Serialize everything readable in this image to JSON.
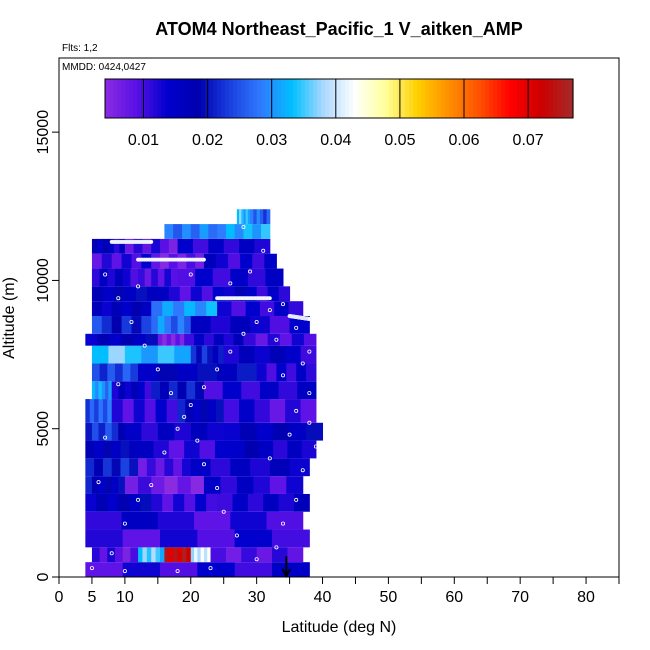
{
  "chart_data": {
    "type": "heatmap",
    "title": "ATOM4 Northeast_Pacific_1 V_aitken_AMP",
    "flights_note": "Flts: 1,2",
    "dates_note": "MMDD: 0424,0427",
    "xlabel": "Latitude (deg N)",
    "ylabel": "Altitude (m)",
    "xlim": [
      0,
      85
    ],
    "ylim": [
      0,
      17500
    ],
    "x_ticks": [
      0,
      5,
      10,
      20,
      30,
      40,
      50,
      60,
      70,
      80
    ],
    "y_ticks": [
      0,
      5000,
      10000,
      15000
    ],
    "grid": false,
    "colorbar": {
      "placement": "top",
      "range": [
        0.004,
        0.077
      ],
      "ticks": [
        0.01,
        0.02,
        0.03,
        0.04,
        0.05,
        0.06,
        0.07
      ],
      "tick_labels": [
        "0.01",
        "0.02",
        "0.03",
        "0.04",
        "0.05",
        "0.06",
        "0.07"
      ],
      "colors": [
        "#8a2be2",
        "#5a10e6",
        "#0000cd",
        "#0000b0",
        "#1a3fe0",
        "#2f7bff",
        "#00bfff",
        "#aad8ff",
        "#ffffff",
        "#ffff99",
        "#ffd000",
        "#ff9000",
        "#ff5000",
        "#ff0000",
        "#cc0000",
        "#a52a2a"
      ]
    },
    "arrow_marker": {
      "lat": 34.5,
      "alt_top": 700,
      "alt_bottom": 0
    },
    "bands": [
      {
        "alt": [
          0,
          500
        ],
        "lat": [
          4,
          38
        ],
        "segments": [
          [
            4,
            38,
            0.012
          ]
        ]
      },
      {
        "alt": [
          500,
          1000
        ],
        "lat": [
          5,
          37
        ],
        "segments": [
          [
            5,
            12,
            0.009
          ],
          [
            12,
            16,
            0.035
          ],
          [
            16,
            20,
            0.072
          ],
          [
            20,
            23,
            0.04
          ],
          [
            23,
            37,
            0.009
          ]
        ]
      },
      {
        "alt": [
          1000,
          1600
        ],
        "lat": [
          4,
          38
        ],
        "segments": [
          [
            4,
            38,
            0.011
          ]
        ]
      },
      {
        "alt": [
          1600,
          2200
        ],
        "lat": [
          4,
          37
        ],
        "segments": [
          [
            4,
            37,
            0.012
          ]
        ]
      },
      {
        "alt": [
          2200,
          2800
        ],
        "lat": [
          4,
          38
        ],
        "segments": [
          [
            4,
            14,
            0.016
          ],
          [
            14,
            24,
            0.011
          ],
          [
            24,
            38,
            0.014
          ]
        ]
      },
      {
        "alt": [
          2800,
          3400
        ],
        "lat": [
          4,
          37
        ],
        "segments": [
          [
            4,
            10,
            0.018
          ],
          [
            10,
            22,
            0.007
          ],
          [
            22,
            37,
            0.012
          ]
        ]
      },
      {
        "alt": [
          3400,
          4000
        ],
        "lat": [
          4,
          38
        ],
        "segments": [
          [
            4,
            12,
            0.02
          ],
          [
            12,
            20,
            0.009
          ],
          [
            20,
            38,
            0.014
          ]
        ]
      },
      {
        "alt": [
          4000,
          4600
        ],
        "lat": [
          4,
          39
        ],
        "segments": [
          [
            4,
            12,
            0.018
          ],
          [
            12,
            26,
            0.012
          ],
          [
            26,
            39,
            0.015
          ]
        ]
      },
      {
        "alt": [
          4600,
          5200
        ],
        "lat": [
          4,
          40
        ],
        "segments": [
          [
            4,
            10,
            0.022
          ],
          [
            10,
            25,
            0.013
          ],
          [
            25,
            40,
            0.016
          ]
        ]
      },
      {
        "alt": [
          5200,
          6000
        ],
        "lat": [
          4,
          39
        ],
        "segments": [
          [
            4,
            8,
            0.026
          ],
          [
            8,
            18,
            0.012
          ],
          [
            18,
            25,
            0.018
          ],
          [
            25,
            39,
            0.011
          ]
        ]
      },
      {
        "alt": [
          6000,
          6600
        ],
        "lat": [
          5,
          39
        ],
        "segments": [
          [
            5,
            8,
            0.03
          ],
          [
            8,
            14,
            0.014
          ],
          [
            14,
            22,
            0.019
          ],
          [
            22,
            39,
            0.012
          ]
        ]
      },
      {
        "alt": [
          6600,
          7200
        ],
        "lat": [
          5,
          39
        ],
        "segments": [
          [
            5,
            12,
            0.024
          ],
          [
            12,
            30,
            0.018
          ],
          [
            30,
            39,
            0.013
          ]
        ]
      },
      {
        "alt": [
          7200,
          7800
        ],
        "lat": [
          5,
          39
        ],
        "segments": [
          [
            5,
            20,
            0.034
          ],
          [
            20,
            25,
            0.02
          ],
          [
            25,
            39,
            0.014
          ]
        ]
      },
      {
        "alt": [
          7800,
          8200
        ],
        "lat": [
          4,
          39
        ],
        "segments": [
          [
            4,
            15,
            0.016
          ],
          [
            15,
            19,
            0.006
          ],
          [
            19,
            28,
            0.014
          ],
          [
            28,
            39,
            0.011
          ]
        ]
      },
      {
        "alt": [
          8200,
          8800
        ],
        "lat": [
          5,
          38
        ],
        "segments": [
          [
            5,
            14,
            0.022
          ],
          [
            14,
            20,
            0.028
          ],
          [
            20,
            38,
            0.013
          ]
        ]
      },
      {
        "alt": [
          8800,
          9300
        ],
        "lat": [
          5,
          37
        ],
        "segments": [
          [
            5,
            14,
            0.015
          ],
          [
            14,
            24,
            0.03
          ],
          [
            24,
            37,
            0.012
          ]
        ]
      },
      {
        "alt": [
          9300,
          9800
        ],
        "lat": [
          5,
          35
        ],
        "segments": [
          [
            5,
            15,
            0.018
          ],
          [
            15,
            25,
            0.012
          ],
          [
            25,
            35,
            0.014
          ]
        ]
      },
      {
        "alt": [
          9800,
          10400
        ],
        "lat": [
          5,
          34
        ],
        "segments": [
          [
            5,
            12,
            0.013
          ],
          [
            12,
            18,
            0.009
          ],
          [
            18,
            34,
            0.012
          ]
        ]
      },
      {
        "alt": [
          10400,
          10900
        ],
        "lat": [
          5,
          33
        ],
        "segments": [
          [
            5,
            14,
            0.011
          ],
          [
            14,
            22,
            0.008
          ],
          [
            22,
            33,
            0.013
          ]
        ]
      },
      {
        "alt": [
          10900,
          11400
        ],
        "lat": [
          5,
          32
        ],
        "segments": [
          [
            5,
            10,
            0.015
          ],
          [
            10,
            18,
            0.009
          ],
          [
            18,
            32,
            0.012
          ]
        ]
      },
      {
        "alt": [
          11400,
          11900
        ],
        "lat": [
          16,
          32
        ],
        "segments": [
          [
            16,
            24,
            0.028
          ],
          [
            24,
            32,
            0.032
          ]
        ]
      },
      {
        "alt": [
          11900,
          12400
        ],
        "lat": [
          27,
          32
        ],
        "segments": [
          [
            27,
            29,
            0.034
          ],
          [
            29,
            32,
            0.026
          ]
        ]
      }
    ],
    "tracks": [
      {
        "lat": [
          12,
          22
        ],
        "alt": [
          10700,
          10700
        ]
      },
      {
        "lat": [
          24,
          32
        ],
        "alt": [
          9400,
          9400
        ]
      },
      {
        "lat": [
          8,
          14
        ],
        "alt": [
          11300,
          11300
        ]
      },
      {
        "lat": [
          35,
          38
        ],
        "alt": [
          8800,
          8700
        ]
      }
    ],
    "points": [
      [
        5,
        300
      ],
      [
        8,
        800
      ],
      [
        10,
        1800
      ],
      [
        12,
        2600
      ],
      [
        14,
        3100
      ],
      [
        16,
        4200
      ],
      [
        18,
        5000
      ],
      [
        20,
        5800
      ],
      [
        22,
        6400
      ],
      [
        24,
        7000
      ],
      [
        26,
        7600
      ],
      [
        28,
        8200
      ],
      [
        30,
        8600
      ],
      [
        32,
        9000
      ],
      [
        34,
        9200
      ],
      [
        36,
        8400
      ],
      [
        37,
        7200
      ],
      [
        38,
        6200
      ],
      [
        38,
        5200
      ],
      [
        39,
        4400
      ],
      [
        37,
        3600
      ],
      [
        36,
        2600
      ],
      [
        34,
        1800
      ],
      [
        33,
        1000
      ],
      [
        30,
        600
      ],
      [
        27,
        1400
      ],
      [
        25,
        2200
      ],
      [
        24,
        3000
      ],
      [
        22,
        3800
      ],
      [
        21,
        4600
      ],
      [
        19,
        5400
      ],
      [
        17,
        6200
      ],
      [
        15,
        7000
      ],
      [
        13,
        7800
      ],
      [
        11,
        8600
      ],
      [
        9,
        9400
      ],
      [
        7,
        10200
      ],
      [
        6,
        3200
      ],
      [
        7,
        4700
      ],
      [
        9,
        6500
      ],
      [
        29,
        10300
      ],
      [
        31,
        11000
      ],
      [
        28,
        11800
      ],
      [
        35,
        4800
      ],
      [
        36,
        5600
      ],
      [
        38,
        3000
      ],
      [
        32,
        4000
      ],
      [
        34,
        6800
      ],
      [
        10,
        200
      ],
      [
        18,
        200
      ],
      [
        23,
        300
      ],
      [
        12,
        9800
      ],
      [
        20,
        10200
      ],
      [
        26,
        9900
      ],
      [
        33,
        8000
      ],
      [
        38,
        7600
      ]
    ]
  }
}
